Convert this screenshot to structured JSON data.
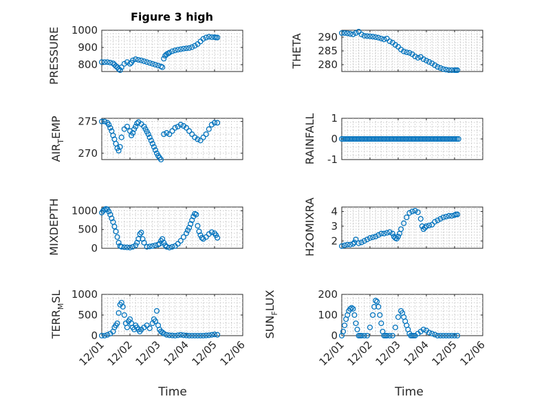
{
  "chart_data": [
    {
      "type": "scatter",
      "title": "Figure 3 high",
      "ylabel": "PRESSURE",
      "ylim": [
        760,
        1000
      ],
      "yticks": [
        800,
        900,
        1000
      ],
      "x": [
        0.0,
        0.1,
        0.2,
        0.3,
        0.4,
        0.45,
        0.5,
        0.55,
        0.6,
        0.65,
        0.7,
        0.8,
        0.9,
        1.0,
        1.05,
        1.1,
        1.2,
        1.3,
        1.4,
        1.5,
        1.6,
        1.7,
        1.8,
        1.9,
        2.0,
        2.1,
        2.15,
        2.2,
        2.25,
        2.3,
        2.35,
        2.4,
        2.5,
        2.6,
        2.7,
        2.8,
        2.9,
        3.0,
        3.1,
        3.2,
        3.3,
        3.4,
        3.5,
        3.6,
        3.7,
        3.8,
        3.9,
        4.0,
        4.05,
        4.1
      ],
      "y": [
        815,
        815,
        815,
        812,
        808,
        800,
        792,
        785,
        775,
        768,
        785,
        805,
        815,
        805,
        812,
        825,
        832,
        828,
        825,
        820,
        815,
        810,
        805,
        800,
        795,
        790,
        785,
        835,
        852,
        860,
        865,
        870,
        878,
        883,
        887,
        890,
        893,
        895,
        897,
        902,
        910,
        920,
        935,
        950,
        958,
        962,
        960,
        960,
        958,
        958
      ],
      "subplot_title": ""
    },
    {
      "type": "scatter",
      "ylabel": "THETA",
      "ylim": [
        277.5,
        292.5
      ],
      "yticks": [
        280,
        285,
        290
      ],
      "x": [
        0.0,
        0.1,
        0.2,
        0.3,
        0.4,
        0.5,
        0.6,
        0.7,
        0.8,
        0.9,
        1.0,
        1.1,
        1.2,
        1.3,
        1.4,
        1.5,
        1.6,
        1.7,
        1.8,
        1.9,
        2.0,
        2.1,
        2.2,
        2.3,
        2.4,
        2.5,
        2.6,
        2.7,
        2.8,
        2.9,
        3.0,
        3.1,
        3.2,
        3.3,
        3.4,
        3.5,
        3.6,
        3.7,
        3.8,
        3.9,
        4.0,
        4.05,
        4.1
      ],
      "y": [
        291.5,
        291.5,
        291.4,
        291.2,
        291.0,
        291.5,
        292.0,
        291.0,
        290.5,
        290.4,
        290.3,
        290.2,
        290.0,
        289.8,
        289.5,
        289.2,
        289.5,
        288.5,
        288.0,
        287.2,
        286.5,
        285.5,
        284.8,
        284.5,
        284.3,
        283.8,
        283.0,
        282.5,
        282.8,
        282.0,
        281.5,
        281.0,
        280.5,
        279.8,
        279.2,
        278.8,
        278.4,
        278.2,
        278.0,
        278.0,
        278.0,
        278.0,
        278.0
      ]
    },
    {
      "type": "scatter",
      "ylabel": "AIR_TEMP",
      "ylim": [
        269,
        275.5
      ],
      "yticks": [
        270,
        275
      ],
      "x": [
        0.0,
        0.1,
        0.2,
        0.25,
        0.3,
        0.35,
        0.4,
        0.45,
        0.5,
        0.55,
        0.6,
        0.65,
        0.7,
        0.8,
        0.9,
        1.0,
        1.05,
        1.1,
        1.15,
        1.2,
        1.25,
        1.3,
        1.4,
        1.5,
        1.55,
        1.6,
        1.65,
        1.7,
        1.75,
        1.8,
        1.85,
        1.9,
        1.95,
        2.0,
        2.05,
        2.1,
        2.2,
        2.3,
        2.4,
        2.5,
        2.6,
        2.7,
        2.8,
        2.9,
        3.0,
        3.1,
        3.2,
        3.3,
        3.4,
        3.5,
        3.6,
        3.7,
        3.8,
        3.9,
        4.0,
        4.1
      ],
      "y": [
        275.0,
        275.0,
        274.8,
        274.5,
        274.0,
        273.5,
        272.8,
        272.2,
        271.5,
        270.8,
        270.4,
        271.0,
        272.5,
        273.8,
        274.2,
        273.5,
        272.8,
        273.2,
        273.8,
        274.2,
        274.7,
        274.9,
        274.6,
        274.2,
        273.8,
        273.4,
        273.0,
        272.5,
        272.0,
        271.5,
        271.0,
        270.5,
        270.0,
        269.6,
        269.3,
        269.0,
        273.0,
        273.2,
        273.0,
        273.5,
        274.0,
        274.2,
        274.5,
        274.3,
        274.0,
        273.5,
        273.0,
        272.5,
        272.2,
        272.0,
        272.5,
        273.0,
        273.8,
        274.5,
        274.8,
        274.8
      ]
    },
    {
      "type": "scatter",
      "ylabel": "RAINFALL",
      "ylim": [
        -1,
        1
      ],
      "yticks": [
        -1,
        0,
        1
      ],
      "x_start": 0.0,
      "x_end": 4.15,
      "x_step": 0.06,
      "constant_y": 0
    },
    {
      "type": "scatter",
      "ylabel": "MIXDEPTH",
      "ylim": [
        0,
        1100
      ],
      "yticks": [
        0,
        500,
        1000
      ],
      "x": [
        0.0,
        0.05,
        0.1,
        0.15,
        0.2,
        0.25,
        0.3,
        0.35,
        0.4,
        0.45,
        0.5,
        0.55,
        0.6,
        0.65,
        0.7,
        0.8,
        0.9,
        1.0,
        1.1,
        1.2,
        1.25,
        1.3,
        1.35,
        1.4,
        1.45,
        1.5,
        1.6,
        1.7,
        1.8,
        1.9,
        2.0,
        2.05,
        2.1,
        2.15,
        2.2,
        2.25,
        2.3,
        2.4,
        2.5,
        2.6,
        2.7,
        2.8,
        2.9,
        3.0,
        3.05,
        3.1,
        3.15,
        3.2,
        3.25,
        3.3,
        3.35,
        3.4,
        3.45,
        3.5,
        3.55,
        3.6,
        3.7,
        3.8,
        3.9,
        4.0,
        4.05,
        4.1
      ],
      "y": [
        950,
        1000,
        1030,
        1050,
        1040,
        980,
        900,
        800,
        700,
        580,
        450,
        300,
        150,
        60,
        40,
        30,
        25,
        20,
        40,
        80,
        150,
        250,
        380,
        420,
        250,
        150,
        40,
        50,
        60,
        80,
        100,
        120,
        200,
        250,
        150,
        80,
        40,
        20,
        40,
        60,
        120,
        200,
        300,
        400,
        480,
        550,
        650,
        750,
        850,
        920,
        900,
        600,
        450,
        350,
        280,
        250,
        300,
        380,
        430,
        400,
        350,
        280
      ]
    },
    {
      "type": "scatter",
      "ylabel": "H2OMIXRA",
      "ylim": [
        1.5,
        4.3
      ],
      "yticks": [
        2,
        3,
        4
      ],
      "x": [
        0.0,
        0.1,
        0.2,
        0.3,
        0.4,
        0.45,
        0.5,
        0.6,
        0.7,
        0.8,
        0.9,
        1.0,
        1.1,
        1.2,
        1.3,
        1.4,
        1.5,
        1.6,
        1.7,
        1.8,
        1.85,
        1.9,
        1.95,
        2.0,
        2.05,
        2.1,
        2.2,
        2.3,
        2.4,
        2.5,
        2.6,
        2.7,
        2.8,
        2.85,
        2.9,
        2.95,
        3.0,
        3.1,
        3.2,
        3.3,
        3.4,
        3.5,
        3.6,
        3.7,
        3.8,
        3.9,
        4.0,
        4.05,
        4.1
      ],
      "y": [
        1.65,
        1.7,
        1.75,
        1.75,
        1.8,
        1.9,
        2.1,
        1.85,
        1.9,
        2.0,
        2.1,
        2.2,
        2.25,
        2.3,
        2.4,
        2.5,
        2.5,
        2.55,
        2.6,
        2.5,
        2.3,
        2.2,
        2.15,
        2.3,
        2.5,
        2.8,
        3.2,
        3.6,
        3.9,
        4.0,
        4.05,
        3.95,
        3.5,
        3.0,
        2.8,
        2.9,
        3.0,
        3.05,
        3.1,
        3.3,
        3.4,
        3.5,
        3.6,
        3.65,
        3.7,
        3.7,
        3.75,
        3.8,
        3.8
      ]
    },
    {
      "type": "scatter",
      "ylabel": "TERR_MSL",
      "ylim": [
        0,
        1000
      ],
      "yticks": [
        0,
        500,
        1000
      ],
      "x": [
        0.0,
        0.1,
        0.2,
        0.3,
        0.4,
        0.45,
        0.5,
        0.55,
        0.6,
        0.65,
        0.7,
        0.75,
        0.8,
        0.85,
        0.9,
        0.95,
        1.0,
        1.05,
        1.1,
        1.15,
        1.2,
        1.25,
        1.3,
        1.35,
        1.4,
        1.5,
        1.6,
        1.7,
        1.8,
        1.85,
        1.9,
        1.95,
        2.0,
        2.05,
        2.1,
        2.15,
        2.2,
        2.3,
        2.4,
        2.5,
        2.6,
        2.7,
        2.8,
        2.9,
        3.0,
        3.1,
        3.2,
        3.3,
        3.4,
        3.5,
        3.6,
        3.7,
        3.8,
        3.9,
        4.0,
        4.1
      ],
      "y": [
        0,
        0,
        20,
        50,
        100,
        200,
        250,
        300,
        550,
        750,
        800,
        700,
        500,
        300,
        200,
        350,
        400,
        300,
        200,
        150,
        250,
        200,
        150,
        100,
        150,
        200,
        250,
        180,
        300,
        400,
        350,
        600,
        250,
        150,
        100,
        80,
        50,
        20,
        10,
        5,
        0,
        10,
        20,
        10,
        5,
        0,
        0,
        0,
        0,
        0,
        0,
        5,
        10,
        20,
        30,
        20
      ]
    },
    {
      "type": "scatter",
      "ylabel": "SUN_FLUX",
      "ylim": [
        0,
        200
      ],
      "yticks": [
        0,
        100,
        200
      ],
      "x": [
        0.0,
        0.05,
        0.1,
        0.15,
        0.2,
        0.25,
        0.3,
        0.35,
        0.4,
        0.45,
        0.5,
        0.55,
        0.6,
        0.65,
        0.7,
        0.8,
        0.9,
        1.0,
        1.1,
        1.15,
        1.2,
        1.25,
        1.3,
        1.35,
        1.4,
        1.45,
        1.5,
        1.55,
        1.6,
        1.7,
        1.8,
        1.9,
        2.0,
        2.1,
        2.15,
        2.2,
        2.25,
        2.3,
        2.35,
        2.4,
        2.45,
        2.5,
        2.55,
        2.6,
        2.7,
        2.8,
        2.9,
        3.0,
        3.1,
        3.2,
        3.3,
        3.4,
        3.5,
        3.6,
        3.7,
        3.8,
        3.9,
        4.0,
        4.1
      ],
      "y": [
        0,
        20,
        50,
        80,
        100,
        120,
        130,
        135,
        130,
        100,
        60,
        30,
        0,
        0,
        0,
        0,
        0,
        40,
        100,
        140,
        170,
        165,
        140,
        100,
        60,
        20,
        0,
        0,
        0,
        0,
        0,
        40,
        90,
        120,
        110,
        90,
        70,
        50,
        30,
        10,
        0,
        0,
        0,
        0,
        10,
        20,
        30,
        25,
        15,
        10,
        5,
        0,
        0,
        0,
        0,
        0,
        0,
        0,
        0
      ]
    }
  ],
  "shared_x": {
    "xlim": [
      0,
      5
    ],
    "xtick_values": [
      0,
      1,
      2,
      3,
      4,
      5
    ],
    "xtick_labels": [
      "12/01",
      "12/02",
      "12/03",
      "12/04",
      "12/05",
      "12/06"
    ],
    "xlabel": "Time"
  },
  "labels": {
    "title": "Figure 3 high",
    "pressure": "PRESSURE",
    "theta": "THETA",
    "air_temp_main": "AIR",
    "air_temp_sub": "T",
    "air_temp_rest": "EMP",
    "rainfall": "RAINFALL",
    "mixdepth": "MIXDEPTH",
    "h2omixra": "H2OMIXRA",
    "terr_main": "TERR",
    "terr_sub": "M",
    "terr_rest": "SL",
    "sun_main": "SUN",
    "sun_sub": "F",
    "sun_rest": "LUX",
    "time_left": "Time",
    "time_right": "Time"
  },
  "colors": {
    "marker": "#0072bd",
    "axis": "#262626",
    "grid": "#c8c8c8"
  }
}
